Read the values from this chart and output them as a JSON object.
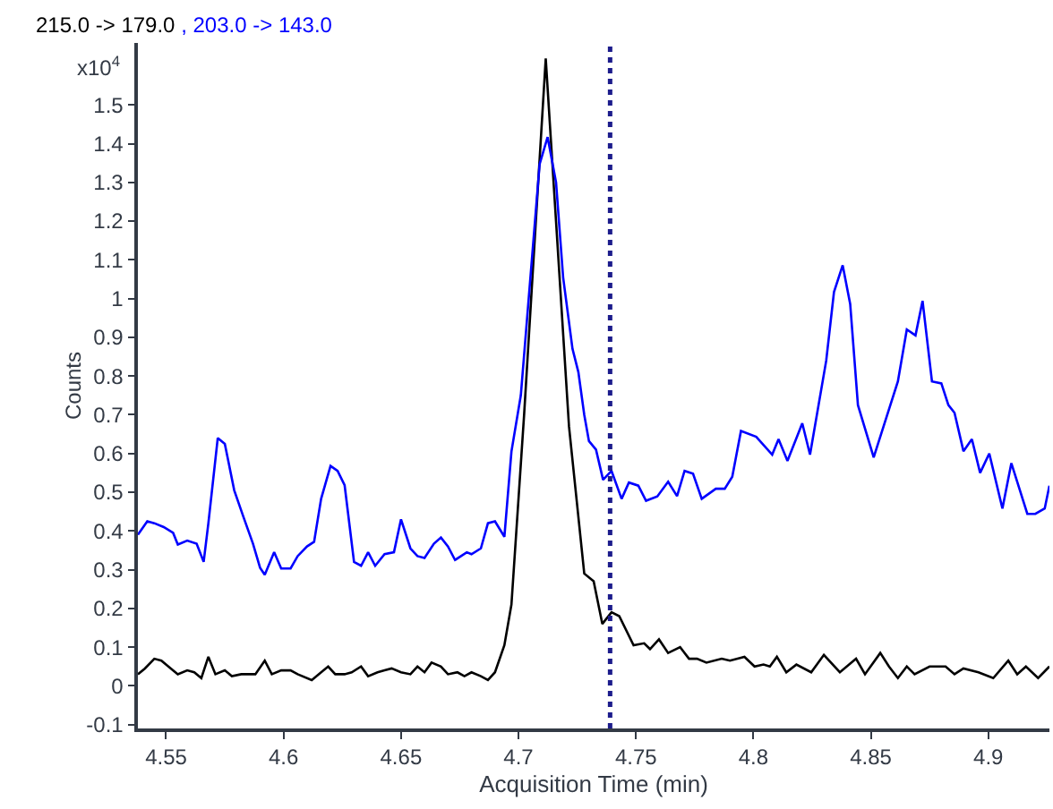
{
  "chart_data": {
    "type": "line",
    "xlabel": "Acquisition Time (min)",
    "ylabel": "Counts",
    "annotations": [
      "x10$^{4}$"
    ],
    "xlim": [
      4.538,
      4.926
    ],
    "xticks": [
      4.55,
      4.6,
      4.65,
      4.7,
      4.75,
      4.8,
      4.85,
      4.9
    ],
    "ylim": [
      -0.11,
      1.66
    ],
    "yticks": [
      -0.1,
      0,
      0.1,
      0.2,
      0.3,
      0.4,
      0.5,
      0.6,
      0.7,
      0.8,
      0.9,
      1,
      1.1,
      1.2,
      1.3,
      1.4,
      1.5
    ],
    "grid": false,
    "marker": "none",
    "line_style": "solid",
    "ref_lines": [
      {
        "axis": "x",
        "value": 4.739,
        "color": "#1c1c8c",
        "line_style": "dotted"
      }
    ],
    "series": [
      {
        "name": "215.0 -> 179.0",
        "color": "#000000",
        "x": [
          4.538,
          4.541,
          4.545,
          4.548,
          4.552,
          4.555,
          4.559,
          4.562,
          4.565,
          4.568,
          4.571,
          4.575,
          4.578,
          4.582,
          4.588,
          4.592,
          4.595,
          4.599,
          4.603,
          4.606,
          4.612,
          4.616,
          4.619,
          4.622,
          4.626,
          4.629,
          4.633,
          4.636,
          4.64,
          4.643,
          4.646,
          4.65,
          4.654,
          4.657,
          4.66,
          4.663,
          4.667,
          4.67,
          4.674,
          4.677,
          4.68,
          4.684,
          4.687,
          4.69,
          4.694,
          4.697,
          4.7024,
          4.7116,
          4.7215,
          4.728,
          4.732,
          4.7357,
          4.7396,
          4.7429,
          4.749,
          4.7535,
          4.756,
          4.7598,
          4.7637,
          4.7688,
          4.7726,
          4.776,
          4.78,
          4.7865,
          4.79,
          4.7962,
          4.8005,
          4.8043,
          4.807,
          4.81,
          4.814,
          4.8183,
          4.8246,
          4.83,
          4.8368,
          4.8437,
          4.8475,
          4.854,
          4.8577,
          4.8615,
          4.8653,
          4.8686,
          4.875,
          4.8818,
          4.8856,
          4.8894,
          4.8958,
          4.9021,
          4.9085,
          4.9123,
          4.916,
          4.9212,
          4.926
        ],
        "values": [
          0.03,
          0.045,
          0.07,
          0.065,
          0.045,
          0.03,
          0.04,
          0.035,
          0.02,
          0.075,
          0.03,
          0.04,
          0.025,
          0.03,
          0.03,
          0.065,
          0.03,
          0.04,
          0.04,
          0.03,
          0.015,
          0.035,
          0.05,
          0.03,
          0.03,
          0.035,
          0.05,
          0.025,
          0.035,
          0.04,
          0.045,
          0.035,
          0.03,
          0.05,
          0.035,
          0.06,
          0.05,
          0.03,
          0.035,
          0.025,
          0.035,
          0.025,
          0.015,
          0.035,
          0.105,
          0.21,
          0.7,
          1.62,
          0.67,
          0.29,
          0.27,
          0.16,
          0.19,
          0.18,
          0.105,
          0.11,
          0.095,
          0.12,
          0.085,
          0.1,
          0.07,
          0.07,
          0.06,
          0.07,
          0.065,
          0.075,
          0.05,
          0.055,
          0.05,
          0.075,
          0.035,
          0.055,
          0.035,
          0.08,
          0.035,
          0.07,
          0.03,
          0.085,
          0.05,
          0.02,
          0.05,
          0.03,
          0.05,
          0.05,
          0.03,
          0.045,
          0.035,
          0.02,
          0.065,
          0.03,
          0.05,
          0.02,
          0.05
        ]
      },
      {
        "name": ", 203.0 -> 143.0",
        "color": "#0000ff",
        "x": [
          4.538,
          4.542,
          4.545,
          4.549,
          4.553,
          4.555,
          4.559,
          4.563,
          4.566,
          4.568,
          4.572,
          4.575,
          4.579,
          4.583,
          4.587,
          4.59,
          4.592,
          4.596,
          4.599,
          4.603,
          4.606,
          4.61,
          4.613,
          4.616,
          4.62,
          4.623,
          4.626,
          4.63,
          4.633,
          4.636,
          4.639,
          4.643,
          4.647,
          4.65,
          4.654,
          4.657,
          4.66,
          4.664,
          4.667,
          4.67,
          4.673,
          4.678,
          4.68,
          4.684,
          4.687,
          4.69,
          4.694,
          4.697,
          4.701,
          4.709,
          4.7124,
          4.716,
          4.719,
          4.723,
          4.7255,
          4.728,
          4.73,
          4.733,
          4.736,
          4.7396,
          4.7439,
          4.747,
          4.751,
          4.7543,
          4.7591,
          4.7637,
          4.7675,
          4.7707,
          4.7743,
          4.778,
          4.784,
          4.7878,
          4.791,
          4.7947,
          4.8012,
          4.808,
          4.8107,
          4.8145,
          4.8208,
          4.8241,
          4.831,
          4.8343,
          4.838,
          4.8412,
          4.8445,
          4.8512,
          4.8615,
          4.8653,
          4.869,
          4.872,
          4.876,
          4.88,
          4.883,
          4.8856,
          4.8894,
          4.893,
          4.8965,
          4.9004,
          4.906,
          4.9098,
          4.9166,
          4.92,
          4.924,
          4.926
        ],
        "values": [
          0.39,
          0.425,
          0.42,
          0.41,
          0.395,
          0.365,
          0.375,
          0.367,
          0.32,
          0.42,
          0.64,
          0.625,
          0.505,
          0.435,
          0.367,
          0.305,
          0.287,
          0.345,
          0.303,
          0.303,
          0.335,
          0.36,
          0.372,
          0.483,
          0.568,
          0.555,
          0.518,
          0.32,
          0.31,
          0.345,
          0.31,
          0.34,
          0.345,
          0.43,
          0.355,
          0.335,
          0.33,
          0.367,
          0.383,
          0.36,
          0.325,
          0.345,
          0.34,
          0.355,
          0.42,
          0.425,
          0.385,
          0.605,
          0.75,
          1.347,
          1.417,
          1.3,
          1.055,
          0.87,
          0.81,
          0.7,
          0.632,
          0.61,
          0.532,
          0.555,
          0.483,
          0.525,
          0.517,
          0.478,
          0.489,
          0.527,
          0.49,
          0.555,
          0.548,
          0.483,
          0.509,
          0.509,
          0.54,
          0.658,
          0.643,
          0.597,
          0.637,
          0.581,
          0.678,
          0.597,
          0.84,
          1.017,
          1.086,
          0.986,
          0.725,
          0.59,
          0.786,
          0.92,
          0.905,
          0.994,
          0.786,
          0.781,
          0.725,
          0.705,
          0.606,
          0.637,
          0.55,
          0.6,
          0.458,
          0.575,
          0.444,
          0.444,
          0.458,
          0.517
        ]
      }
    ]
  }
}
